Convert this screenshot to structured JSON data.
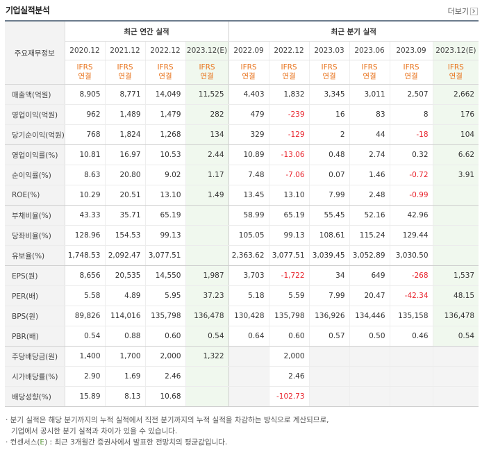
{
  "title": "기업실적분석",
  "more_label": "더보기",
  "header": {
    "row_label": "주요재무정보",
    "annual_group": "최근 연간 실적",
    "quarter_group": "최근 분기 실적",
    "annual_periods": [
      "2020.12",
      "2021.12",
      "2022.12",
      "2023.12(E)"
    ],
    "quarter_periods": [
      "2022.09",
      "2022.12",
      "2023.03",
      "2023.06",
      "2023.09",
      "2023.12(E)"
    ],
    "ifrs_top": "IFRS",
    "ifrs_bottom": "연결"
  },
  "rows": [
    {
      "label": "매출액(억원)",
      "annual": [
        "8,905",
        "8,771",
        "14,049",
        "11,525"
      ],
      "quarter": [
        "4,403",
        "1,832",
        "3,345",
        "3,011",
        "2,507",
        "2,662"
      ]
    },
    {
      "label": "영업이익(억원)",
      "annual": [
        "962",
        "1,489",
        "1,479",
        "282"
      ],
      "quarter": [
        "479",
        "-239",
        "16",
        "83",
        "8",
        "176"
      ]
    },
    {
      "label": "당기순이익(억원)",
      "annual": [
        "768",
        "1,824",
        "1,268",
        "134"
      ],
      "quarter": [
        "329",
        "-129",
        "2",
        "44",
        "-18",
        "104"
      ]
    },
    {
      "label": "영업이익률(%)",
      "annual": [
        "10.81",
        "16.97",
        "10.53",
        "2.44"
      ],
      "quarter": [
        "10.89",
        "-13.06",
        "0.48",
        "2.74",
        "0.32",
        "6.62"
      ]
    },
    {
      "label": "순이익률(%)",
      "annual": [
        "8.63",
        "20.80",
        "9.02",
        "1.17"
      ],
      "quarter": [
        "7.48",
        "-7.06",
        "0.07",
        "1.46",
        "-0.72",
        "3.91"
      ]
    },
    {
      "label": "ROE(%)",
      "annual": [
        "10.29",
        "20.51",
        "13.10",
        "1.49"
      ],
      "quarter": [
        "13.45",
        "13.10",
        "7.99",
        "2.48",
        "-0.99",
        ""
      ]
    },
    {
      "label": "부채비율(%)",
      "annual": [
        "43.33",
        "35.71",
        "65.19",
        ""
      ],
      "quarter": [
        "58.99",
        "65.19",
        "55.45",
        "52.16",
        "42.96",
        ""
      ]
    },
    {
      "label": "당좌비율(%)",
      "annual": [
        "128.96",
        "154.53",
        "99.13",
        ""
      ],
      "quarter": [
        "105.05",
        "99.13",
        "108.61",
        "115.24",
        "129.44",
        ""
      ]
    },
    {
      "label": "유보율(%)",
      "annual": [
        "1,748.53",
        "2,092.47",
        "3,077.51",
        ""
      ],
      "quarter": [
        "2,363.62",
        "3,077.51",
        "3,039.45",
        "3,052.89",
        "3,030.50",
        ""
      ]
    },
    {
      "label": "EPS(원)",
      "annual": [
        "8,656",
        "20,535",
        "14,550",
        "1,987"
      ],
      "quarter": [
        "3,703",
        "-1,722",
        "34",
        "649",
        "-268",
        "1,537"
      ]
    },
    {
      "label": "PER(배)",
      "annual": [
        "5.58",
        "4.89",
        "5.95",
        "37.23"
      ],
      "quarter": [
        "5.18",
        "5.59",
        "7.99",
        "20.47",
        "-42.34",
        "48.15"
      ]
    },
    {
      "label": "BPS(원)",
      "annual": [
        "89,826",
        "114,016",
        "135,798",
        "136,478"
      ],
      "quarter": [
        "130,428",
        "135,798",
        "136,926",
        "134,446",
        "135,158",
        "136,478"
      ]
    },
    {
      "label": "PBR(배)",
      "annual": [
        "0.54",
        "0.88",
        "0.60",
        "0.54"
      ],
      "quarter": [
        "0.64",
        "0.60",
        "0.57",
        "0.50",
        "0.46",
        "0.54"
      ]
    },
    {
      "label": "주당배당금(원)",
      "annual": [
        "1,400",
        "1,700",
        "2,000",
        "1,322"
      ],
      "quarter": [
        "",
        "2,000",
        "",
        "",
        "",
        ""
      ]
    },
    {
      "label": "시가배당률(%)",
      "annual": [
        "2.90",
        "1.69",
        "2.46",
        ""
      ],
      "quarter": [
        "",
        "2.46",
        "",
        "",
        "",
        ""
      ]
    },
    {
      "label": "배당성향(%)",
      "annual": [
        "15.89",
        "8.13",
        "10.68",
        ""
      ],
      "quarter": [
        "",
        "-102.73",
        "",
        "",
        "",
        ""
      ]
    }
  ],
  "notes": {
    "line1": "· 분기 실적은 해당 분기까지의 누적 실적에서 직전 분기까지의 누적 실적을 차감하는 방식으로 계산되므로,",
    "line2": "기업에서 공시한 분기 실적과 차이가 있을 수 있습니다.",
    "line3_a": "· 컨센서스(",
    "line3_e": "E",
    "line3_b": ") : 최근 3개월간 증권사에서 발표한 전망치의 평균값입니다."
  }
}
